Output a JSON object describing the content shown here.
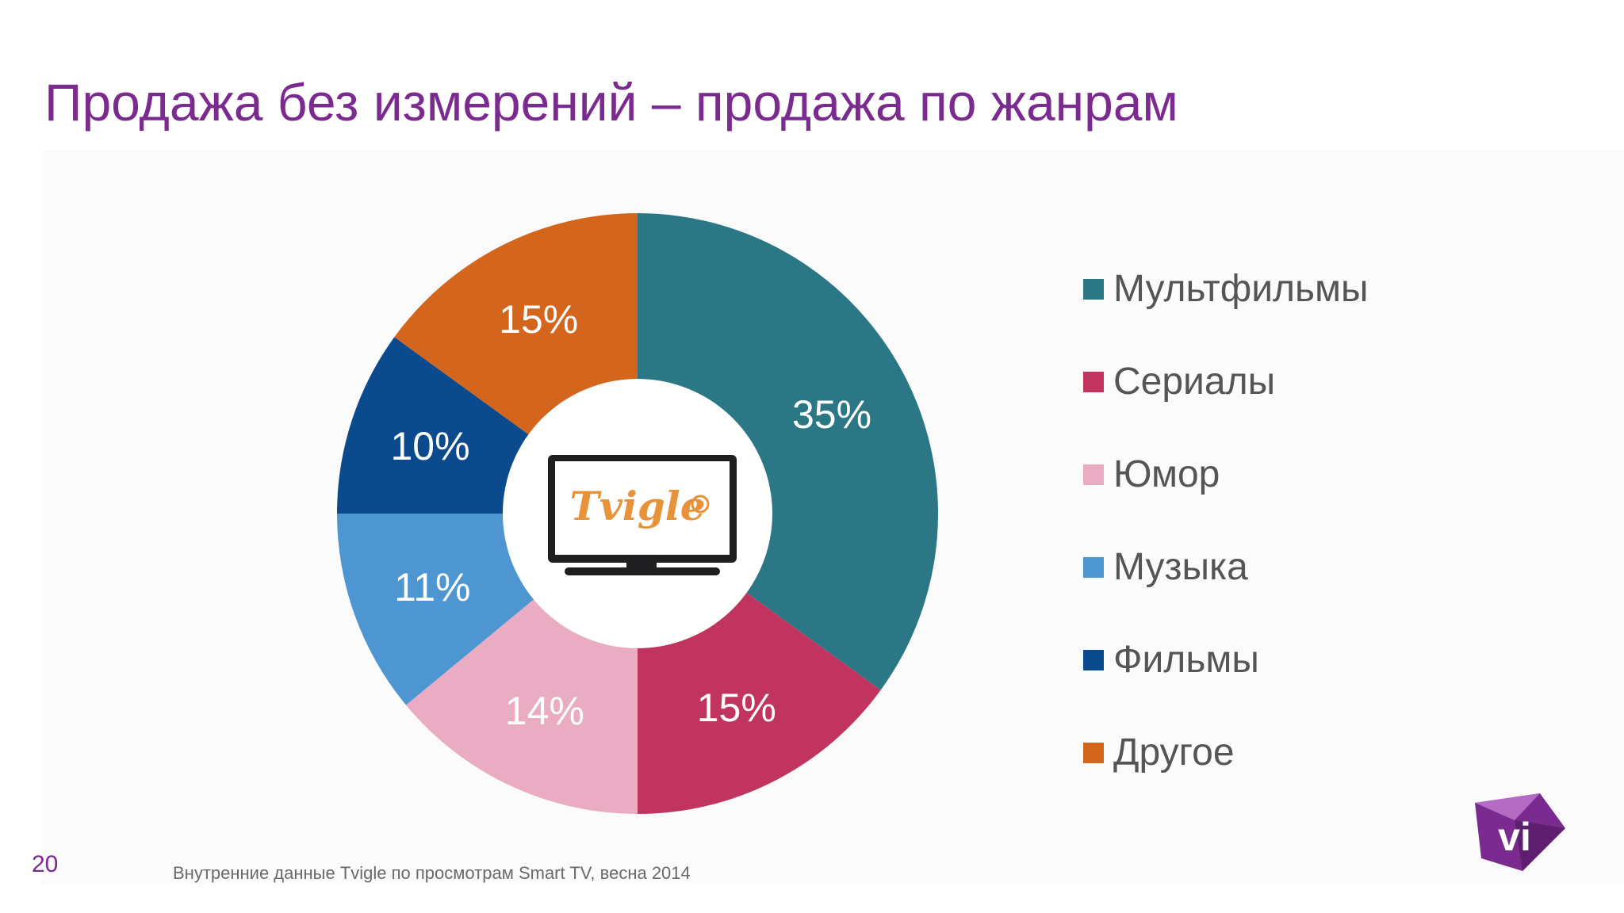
{
  "slide": {
    "title": "Продажа без измерений – продажа по жанрам",
    "page_number": "20",
    "source": "Внутренние данные Tvigle по просмотрам Smart TV, весна 2014",
    "center_logo_text": "Tvigle",
    "corner_logo_text": "vi",
    "title_color": "#7b2b8f"
  },
  "chart_data": {
    "type": "pie",
    "variant": "donut",
    "title": "",
    "legend_position": "right",
    "slices": [
      {
        "label": "Мультфильмы",
        "value": 35,
        "display": "35%",
        "color": "#2b7786"
      },
      {
        "label": "Сериалы",
        "value": 15,
        "display": "15%",
        "color": "#c0345f"
      },
      {
        "label": "Юмор",
        "value": 14,
        "display": "14%",
        "color": "#e9acc2"
      },
      {
        "label": "Музыка",
        "value": 11,
        "display": "11%",
        "color": "#4e96d1"
      },
      {
        "label": "Фильмы",
        "value": 10,
        "display": "10%",
        "color": "#0c4a8e"
      },
      {
        "label": "Другое",
        "value": 15,
        "display": "15%",
        "color": "#d3651c"
      }
    ]
  }
}
